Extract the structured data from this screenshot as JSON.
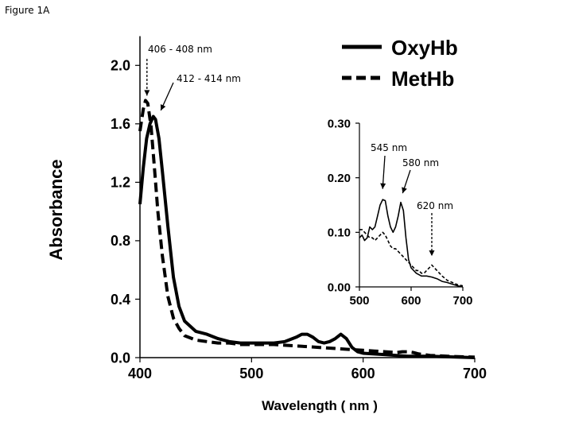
{
  "figure_label": "Figure 1A",
  "chart_data": [
    {
      "type": "line",
      "title": "",
      "xlabel": "Wavelength ( nm )",
      "ylabel": "Absorbance",
      "xlim": [
        400,
        700
      ],
      "ylim": [
        0,
        2.2
      ],
      "xticks": [
        "400",
        "500",
        "600",
        "700"
      ],
      "yticks": [
        "0.0",
        "0.4",
        "0.8",
        "1.2",
        "1.6",
        "2.0"
      ],
      "legend": {
        "placement": "top-right",
        "entries": [
          "OxyHb",
          "MetHb"
        ]
      },
      "series": [
        {
          "name": "OxyHb",
          "style": "solid",
          "x": [
            400,
            403,
            406,
            409,
            412,
            414,
            417,
            420,
            425,
            430,
            435,
            440,
            450,
            460,
            470,
            480,
            490,
            500,
            510,
            520,
            530,
            540,
            545,
            550,
            555,
            560,
            565,
            570,
            575,
            580,
            585,
            590,
            595,
            600,
            620,
            640,
            660,
            680,
            700
          ],
          "y": [
            1.05,
            1.3,
            1.5,
            1.6,
            1.65,
            1.63,
            1.5,
            1.28,
            0.9,
            0.55,
            0.35,
            0.25,
            0.18,
            0.16,
            0.13,
            0.11,
            0.1,
            0.1,
            0.1,
            0.1,
            0.11,
            0.14,
            0.16,
            0.16,
            0.14,
            0.11,
            0.1,
            0.11,
            0.13,
            0.16,
            0.13,
            0.07,
            0.04,
            0.03,
            0.02,
            0.01,
            0.01,
            0.005,
            0.0
          ]
        },
        {
          "name": "MetHb",
          "style": "dashed",
          "x": [
            400,
            403,
            405,
            407,
            410,
            413,
            416,
            420,
            425,
            430,
            435,
            440,
            450,
            460,
            470,
            480,
            490,
            500,
            520,
            540,
            560,
            580,
            600,
            610,
            620,
            630,
            635,
            640,
            645,
            650,
            660,
            680,
            700
          ],
          "y": [
            1.55,
            1.7,
            1.76,
            1.74,
            1.58,
            1.3,
            1.0,
            0.7,
            0.42,
            0.27,
            0.2,
            0.15,
            0.12,
            0.11,
            0.1,
            0.1,
            0.09,
            0.09,
            0.09,
            0.08,
            0.07,
            0.06,
            0.05,
            0.045,
            0.04,
            0.035,
            0.04,
            0.04,
            0.035,
            0.025,
            0.015,
            0.008,
            0.003
          ]
        }
      ],
      "annotations": [
        {
          "text": "406 - 408 nm",
          "x": 407,
          "y": 1.76
        },
        {
          "text": "412 - 414 nm",
          "x": 413,
          "y": 1.67
        }
      ]
    },
    {
      "type": "line",
      "title": "",
      "xlim": [
        500,
        700
      ],
      "ylim": [
        0,
        0.3
      ],
      "xticks": [
        "500",
        "600",
        "700"
      ],
      "yticks": [
        "0.00",
        "0.10",
        "0.20",
        "0.30"
      ],
      "series": [
        {
          "name": "OxyHb",
          "style": "solid",
          "x": [
            500,
            505,
            510,
            515,
            520,
            525,
            530,
            535,
            540,
            545,
            550,
            555,
            560,
            565,
            570,
            575,
            580,
            585,
            590,
            595,
            600,
            610,
            620,
            630,
            640,
            650,
            660,
            670,
            680,
            690,
            700
          ],
          "y": [
            0.09,
            0.095,
            0.085,
            0.09,
            0.11,
            0.105,
            0.11,
            0.13,
            0.15,
            0.16,
            0.158,
            0.13,
            0.11,
            0.1,
            0.11,
            0.13,
            0.155,
            0.14,
            0.09,
            0.05,
            0.035,
            0.025,
            0.02,
            0.02,
            0.018,
            0.015,
            0.01,
            0.008,
            0.005,
            0.002,
            0.0
          ]
        },
        {
          "name": "MetHb",
          "style": "dashed",
          "x": [
            500,
            505,
            510,
            515,
            520,
            525,
            530,
            535,
            540,
            545,
            550,
            555,
            560,
            565,
            570,
            575,
            580,
            585,
            590,
            595,
            600,
            605,
            610,
            615,
            620,
            625,
            630,
            635,
            640,
            645,
            650,
            660,
            670,
            680,
            690,
            700
          ],
          "y": [
            0.105,
            0.105,
            0.1,
            0.095,
            0.09,
            0.09,
            0.085,
            0.09,
            0.095,
            0.1,
            0.095,
            0.085,
            0.075,
            0.07,
            0.07,
            0.065,
            0.06,
            0.055,
            0.05,
            0.045,
            0.04,
            0.035,
            0.03,
            0.03,
            0.025,
            0.025,
            0.03,
            0.035,
            0.04,
            0.035,
            0.03,
            0.02,
            0.012,
            0.008,
            0.004,
            0.002
          ]
        }
      ],
      "annotations": [
        {
          "text": "545 nm",
          "x": 548,
          "y": 0.165
        },
        {
          "text": "580 nm",
          "x": 582,
          "y": 0.16
        },
        {
          "text": "620 nm",
          "x": 640,
          "y": 0.045
        }
      ]
    }
  ]
}
